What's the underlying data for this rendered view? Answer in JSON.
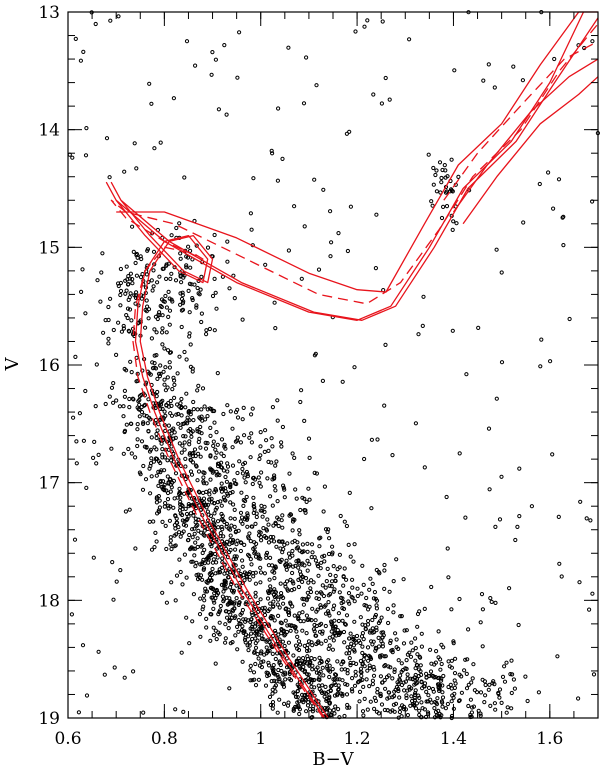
{
  "chart_data": {
    "type": "scatter",
    "title": "",
    "xlabel": "B−V",
    "ylabel": "V",
    "xlim": [
      0.6,
      1.7
    ],
    "ylim": [
      19,
      13
    ],
    "y_inverted": true,
    "grid": false,
    "x_ticks": [
      {
        "value": 0.6,
        "label": "0.6"
      },
      {
        "value": 0.8,
        "label": "0.8"
      },
      {
        "value": 1.0,
        "label": "1"
      },
      {
        "value": 1.2,
        "label": "1.2"
      },
      {
        "value": 1.4,
        "label": "1.4"
      },
      {
        "value": 1.6,
        "label": "1.6"
      }
    ],
    "y_ticks": [
      {
        "value": 13,
        "label": "13"
      },
      {
        "value": 14,
        "label": "14"
      },
      {
        "value": 15,
        "label": "15"
      },
      {
        "value": 16,
        "label": "16"
      },
      {
        "value": 17,
        "label": "17"
      },
      {
        "value": 18,
        "label": "18"
      },
      {
        "value": 19,
        "label": "19"
      }
    ],
    "colors": {
      "points": "#000000",
      "isochrones": "#e8141c",
      "axes": "#000000"
    },
    "scatter_components": [
      {
        "name": "main sequence ridge",
        "x": [
          0.76,
          0.81,
          0.87,
          0.93,
          1.0,
          1.07,
          1.14
        ],
        "y": [
          16.0,
          16.8,
          17.4,
          17.9,
          18.3,
          18.65,
          19.0
        ],
        "x_spread": 0.04,
        "y_spread": 0.12,
        "count": 900
      },
      {
        "name": "main sequence broad",
        "x": [
          0.82,
          0.92,
          1.02,
          1.12,
          1.22,
          1.32,
          1.42
        ],
        "y": [
          16.3,
          17.0,
          17.6,
          18.1,
          18.5,
          18.8,
          19.0
        ],
        "x_spread": 0.08,
        "y_spread": 0.2,
        "count": 1400
      },
      {
        "name": "turnoff",
        "x": [
          0.72,
          0.76,
          0.82,
          0.88
        ],
        "y": [
          15.3,
          15.6,
          15.4,
          15.2
        ],
        "x_spread": 0.04,
        "y_spread": 0.25,
        "count": 220
      },
      {
        "name": "red clump",
        "x": [
          1.37,
          1.39
        ],
        "y": [
          14.4,
          14.6
        ],
        "x_spread": 0.02,
        "y_spread": 0.12,
        "count": 35
      },
      {
        "name": "field",
        "x": [
          0.6,
          1.7
        ],
        "y": [
          13.0,
          19.0
        ],
        "uniform": true,
        "count": 280
      }
    ],
    "lines": [
      {
        "style": "solid",
        "x": [
          1.133,
          1.05,
          0.96,
          0.88,
          0.82,
          0.78,
          0.755,
          0.74,
          0.745,
          0.76,
          0.8,
          0.85,
          0.89,
          0.88,
          0.83,
          0.76,
          0.7,
          0.68,
          0.7,
          0.8,
          0.95,
          1.1,
          1.2,
          1.27,
          1.35,
          1.42,
          1.52,
          1.6,
          1.67
        ],
        "y": [
          19.0,
          18.5,
          17.9,
          17.3,
          16.8,
          16.4,
          16.1,
          15.8,
          15.5,
          15.2,
          14.95,
          14.9,
          15.1,
          15.3,
          15.2,
          14.9,
          14.6,
          14.45,
          14.6,
          14.95,
          15.3,
          15.55,
          15.62,
          15.5,
          15.0,
          14.5,
          14.1,
          13.6,
          13.0
        ]
      },
      {
        "style": "solid",
        "x": [
          1.14,
          1.06,
          0.97,
          0.89,
          0.83,
          0.79,
          0.765,
          0.75,
          0.755,
          0.77,
          0.81,
          0.86,
          0.9,
          0.89,
          0.84,
          0.77,
          0.71,
          0.69,
          0.71,
          0.81,
          0.96,
          1.11,
          1.21,
          1.28,
          1.36,
          1.43,
          1.53,
          1.61,
          1.7
        ],
        "y": [
          19.0,
          18.5,
          17.9,
          17.3,
          16.8,
          16.4,
          16.1,
          15.8,
          15.5,
          15.2,
          14.95,
          14.9,
          15.1,
          15.3,
          15.2,
          14.9,
          14.6,
          14.45,
          14.6,
          14.95,
          15.3,
          15.55,
          15.62,
          15.5,
          15.0,
          14.5,
          14.1,
          13.6,
          13.05
        ]
      },
      {
        "style": "dashed",
        "x": [
          1.13,
          1.045,
          0.95,
          0.87,
          0.81,
          0.77,
          0.745,
          0.735,
          0.74,
          0.76,
          0.8,
          0.86,
          0.88,
          0.8,
          0.72,
          0.69,
          0.72,
          0.82,
          0.97,
          1.12,
          1.22,
          1.29,
          1.37,
          1.44,
          1.54,
          1.62,
          1.7
        ],
        "y": [
          19.0,
          18.5,
          17.9,
          17.3,
          16.8,
          16.4,
          16.1,
          15.8,
          15.5,
          15.2,
          15.0,
          15.05,
          15.1,
          14.95,
          14.75,
          14.6,
          14.7,
          14.8,
          15.1,
          15.4,
          15.48,
          15.3,
          14.85,
          14.4,
          14.0,
          13.5,
          13.1
        ]
      },
      {
        "style": "solid",
        "x": [
          0.7,
          0.8,
          0.95,
          1.1,
          1.2,
          1.26,
          1.34,
          1.41,
          1.5,
          1.58,
          1.66,
          1.7
        ],
        "y": [
          14.7,
          14.7,
          14.92,
          15.22,
          15.36,
          15.38,
          14.8,
          14.3,
          13.95,
          13.45,
          13.0,
          13.0
        ]
      },
      {
        "style": "dashed",
        "x": [
          1.38,
          1.45,
          1.55,
          1.63,
          1.7
        ],
        "y": [
          14.6,
          14.2,
          13.75,
          13.4,
          13.25
        ]
      },
      {
        "style": "solid",
        "x": [
          1.4,
          1.47,
          1.56,
          1.64,
          1.7
        ],
        "y": [
          14.7,
          14.3,
          13.85,
          13.55,
          13.4
        ]
      },
      {
        "style": "solid",
        "x": [
          1.42,
          1.49,
          1.58,
          1.66,
          1.7
        ],
        "y": [
          14.8,
          14.4,
          13.95,
          13.7,
          13.55
        ]
      }
    ]
  }
}
